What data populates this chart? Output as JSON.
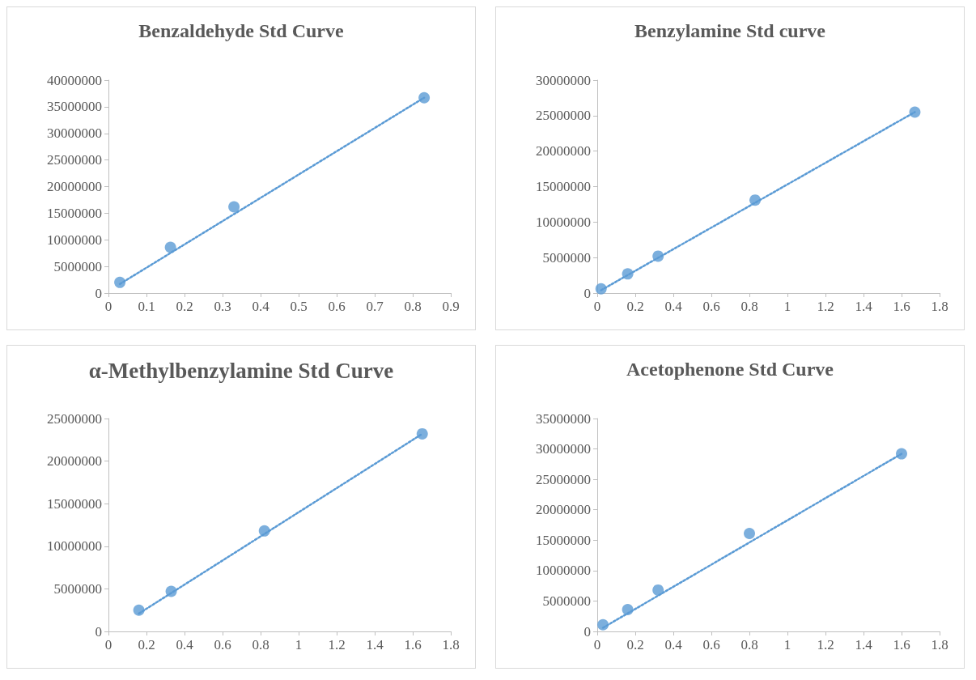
{
  "chart_data": [
    {
      "type": "scatter",
      "title": "Benzaldehyde Std Curve",
      "xlim": [
        0,
        0.9
      ],
      "xticks": [
        0,
        0.1,
        0.2,
        0.3,
        0.4,
        0.5,
        0.6,
        0.7,
        0.8,
        0.9
      ],
      "ylim": [
        0,
        40000000
      ],
      "yticks": [
        0,
        5000000,
        10000000,
        15000000,
        20000000,
        25000000,
        30000000,
        35000000,
        40000000
      ],
      "grid": false,
      "marker": "circle",
      "series": [
        {
          "type": "scatter",
          "color": "#5b9bd5",
          "x": [
            0.03,
            0.163,
            0.33,
            0.83
          ],
          "values": [
            2000000,
            8600000,
            16200000,
            36700000
          ]
        },
        {
          "type": "line",
          "color": "#5b9bd5",
          "line_style": "dotted",
          "marker": "none",
          "x": [
            0.03,
            0.83
          ],
          "values": [
            1700000,
            36700000
          ]
        }
      ]
    },
    {
      "type": "scatter",
      "title": "Benzylamine Std curve",
      "xlim": [
        0,
        1.8
      ],
      "xticks": [
        0,
        0.2,
        0.4,
        0.6,
        0.8,
        1,
        1.2,
        1.4,
        1.6,
        1.8
      ],
      "ylim": [
        0,
        30000000
      ],
      "yticks": [
        0,
        5000000,
        10000000,
        15000000,
        20000000,
        25000000,
        30000000
      ],
      "grid": false,
      "marker": "circle",
      "series": [
        {
          "type": "scatter",
          "color": "#5b9bd5",
          "x": [
            0.02,
            0.16,
            0.32,
            0.83,
            1.67
          ],
          "values": [
            600000,
            2700000,
            5200000,
            13100000,
            25500000
          ]
        },
        {
          "type": "line",
          "color": "#5b9bd5",
          "line_style": "dotted",
          "marker": "none",
          "x": [
            0.02,
            1.67
          ],
          "values": [
            400000,
            25500000
          ]
        }
      ]
    },
    {
      "type": "scatter",
      "title": "α-Methylbenzylamine Std Curve",
      "xlim": [
        0,
        1.8
      ],
      "xticks": [
        0,
        0.2,
        0.4,
        0.6,
        0.8,
        1,
        1.2,
        1.4,
        1.6,
        1.8
      ],
      "ylim": [
        0,
        25000000
      ],
      "yticks": [
        0,
        5000000,
        10000000,
        15000000,
        20000000,
        25000000
      ],
      "grid": false,
      "marker": "circle",
      "series": [
        {
          "type": "scatter",
          "color": "#5b9bd5",
          "x": [
            0.16,
            0.33,
            0.82,
            1.65
          ],
          "values": [
            2500000,
            4700000,
            11800000,
            23200000
          ]
        },
        {
          "type": "line",
          "color": "#5b9bd5",
          "line_style": "dotted",
          "marker": "none",
          "x": [
            0.16,
            1.65
          ],
          "values": [
            2100000,
            23200000
          ]
        }
      ]
    },
    {
      "type": "scatter",
      "title": "Acetophenone Std Curve",
      "xlim": [
        0,
        1.8
      ],
      "xticks": [
        0,
        0.2,
        0.4,
        0.6,
        0.8,
        1,
        1.2,
        1.4,
        1.6,
        1.8
      ],
      "ylim": [
        0,
        35000000
      ],
      "yticks": [
        0,
        5000000,
        10000000,
        15000000,
        20000000,
        25000000,
        30000000,
        35000000
      ],
      "grid": false,
      "marker": "circle",
      "series": [
        {
          "type": "scatter",
          "color": "#5b9bd5",
          "x": [
            0.03,
            0.16,
            0.32,
            0.8,
            1.6
          ],
          "values": [
            1100000,
            3600000,
            6800000,
            16100000,
            29200000
          ]
        },
        {
          "type": "line",
          "color": "#5b9bd5",
          "line_style": "dotted",
          "marker": "none",
          "x": [
            0.03,
            1.6
          ],
          "values": [
            600000,
            29200000
          ]
        }
      ]
    }
  ]
}
